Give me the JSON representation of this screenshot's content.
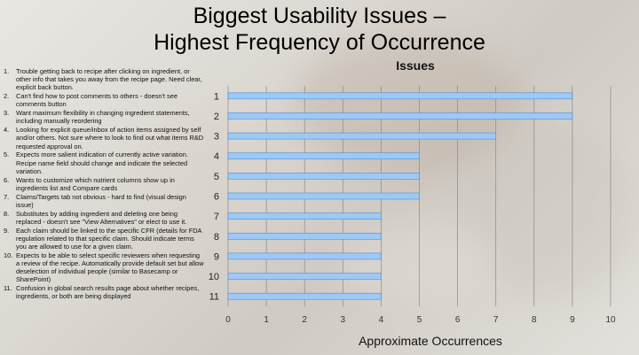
{
  "slide": {
    "title_line1": "Biggest Usability Issues –",
    "title_line2": "Highest Frequency of Occurrence"
  },
  "issues": [
    {
      "num": "1.",
      "text": "Trouble getting back to recipe after clicking on ingredient, or other info that takes you away from the recipe page. Need clear, explicit back button."
    },
    {
      "num": "2.",
      "text": "Can't find how to post comments to others - doesn't see comments button"
    },
    {
      "num": "3.",
      "text": "Want maximum flexibility in changing ingredient statements, including manually reordering"
    },
    {
      "num": "4.",
      "text": "Looking for explicit queue/inbox of action items assigned by self and/or others. Not sure where to look to find out what items R&D requested approval on."
    },
    {
      "num": "5.",
      "text": "Expects more salient indication of currently active variation. Recipe name field should change and indicate the selected variation."
    },
    {
      "num": "6.",
      "text": "Wants to customize which nutrient columns show up in ingredients list and Compare cards"
    },
    {
      "num": "7.",
      "text": "Claims/Targets tab not obvious - hard to find (visual design issue)"
    },
    {
      "num": "8.",
      "text": "Substitutes by adding ingredient and deleting one being replaced - doesn't see \"View Alternatives\" or elect to use it."
    },
    {
      "num": "9.",
      "text": "Each claim should be linked to the specific CFR (details for FDA regulation related to that specific claim. Should indicate terms you are allowed to use for a given claim."
    },
    {
      "num": "10.",
      "text": "Expects to be able to select specific reviewers when requesting a review of the recipe. Automatically provide default set but allow deselection of individual people (similar to Basecamp or SharePoint)"
    },
    {
      "num": "11.",
      "text": "Confusion in global search results page about whether recipes, ingredients, or both are being displayed"
    }
  ],
  "chart_data": {
    "type": "bar",
    "orientation": "horizontal",
    "title": "Issues",
    "xlabel": "Approximate Occurrences",
    "ylabel": "",
    "categories": [
      "1",
      "2",
      "3",
      "4",
      "5",
      "6",
      "7",
      "8",
      "9",
      "10",
      "11"
    ],
    "values": [
      9,
      9,
      7,
      5,
      5,
      5,
      4,
      4,
      4,
      4,
      4
    ],
    "xlim": [
      0,
      10
    ],
    "xticks": [
      "0",
      "1",
      "2",
      "3",
      "4",
      "5",
      "6",
      "7",
      "8",
      "9",
      "10"
    ],
    "grid": true,
    "legend": "none",
    "bar_color": "#9ec9f5",
    "bar_edge_color": "#4f8fd6"
  }
}
